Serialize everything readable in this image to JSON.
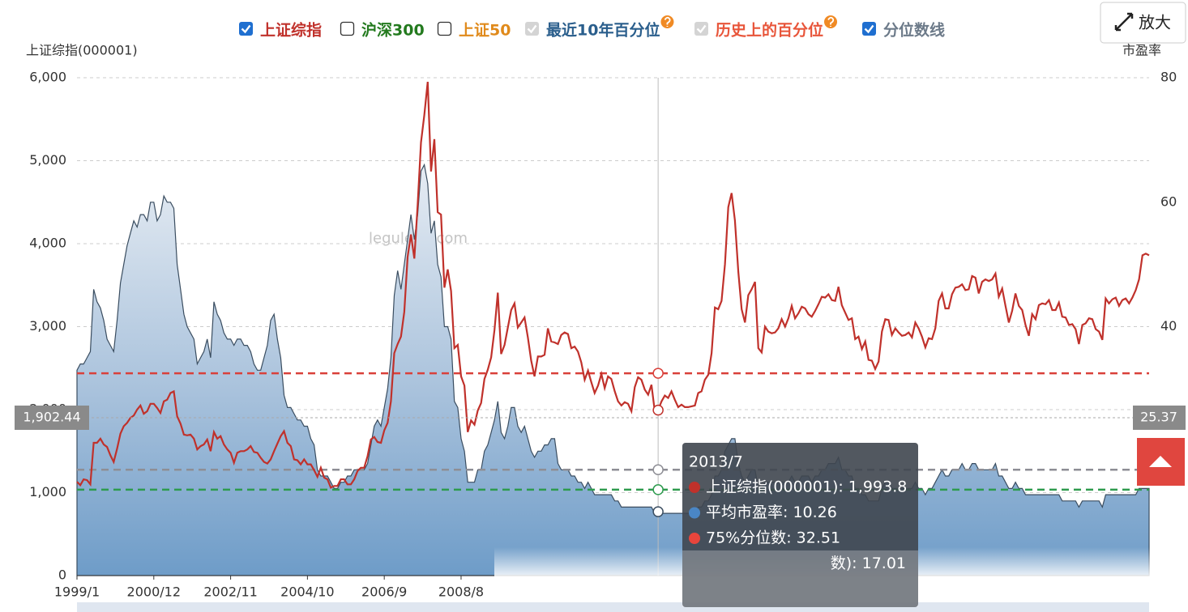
{
  "chart_data": {
    "type": "line-area",
    "legend": [
      {
        "name": "上证综指",
        "checked": true,
        "disabled": false,
        "help": false,
        "color": "#c0312b"
      },
      {
        "name": "沪深300",
        "checked": false,
        "disabled": false,
        "help": false,
        "color": "#237a1e"
      },
      {
        "name": "上证50",
        "checked": false,
        "disabled": false,
        "help": false,
        "color": "#e08a1b"
      },
      {
        "name": "最近10年百分位",
        "checked": true,
        "disabled": true,
        "help": true,
        "color": "#2a5e8c"
      },
      {
        "name": "历史上的百分位",
        "checked": true,
        "disabled": true,
        "help": true,
        "color": "#e8553a"
      },
      {
        "name": "分位数线",
        "checked": true,
        "disabled": false,
        "help": false,
        "color": "#6c7a89"
      }
    ],
    "button": "放大",
    "watermark": "legulegu.com",
    "ylabel": "上证综指(000001)",
    "y2label": "市盈率",
    "ylim": [
      0,
      6000
    ],
    "yticks": [
      0,
      {
        "value": 1000,
        "label": "1,000"
      },
      {
        "value": 2000,
        "label": "2,000"
      },
      {
        "value": 3000,
        "label": "3,000"
      },
      {
        "value": 4000,
        "label": "4,000"
      },
      {
        "value": 5000,
        "label": "5,000"
      },
      {
        "value": 6000,
        "label": "6,000"
      }
    ],
    "y2lim": [
      0,
      80
    ],
    "y2ticks": [
      40,
      60,
      80
    ],
    "grid": true,
    "categories": [
      "1999/1",
      null,
      null,
      null,
      null,
      null,
      null,
      null,
      null,
      null,
      null,
      null,
      null,
      null,
      null,
      null,
      null,
      null,
      null,
      null,
      null,
      null,
      null,
      "2000/12",
      null,
      null,
      null,
      null,
      null,
      null,
      null,
      null,
      null,
      null,
      null,
      null,
      null,
      null,
      null,
      null,
      null,
      null,
      null,
      null,
      null,
      null,
      "2002/11",
      null,
      null,
      null,
      null,
      null,
      null,
      null,
      null,
      null,
      null,
      null,
      null,
      null,
      null,
      null,
      null,
      null,
      null,
      null,
      null,
      null,
      null,
      "2004/10",
      null,
      null,
      null,
      null,
      null,
      null,
      null,
      null,
      null,
      null,
      null,
      null,
      null,
      null,
      null,
      null,
      null,
      null,
      null,
      null,
      null,
      null,
      "2006/9",
      null,
      null,
      null,
      null,
      null,
      null,
      null,
      null,
      null,
      null,
      null,
      null,
      null,
      null,
      null,
      null,
      null,
      null,
      null,
      null,
      null,
      null,
      "2008/8",
      null,
      null,
      null,
      null,
      null,
      null,
      null,
      null,
      null,
      null,
      null,
      null,
      null,
      null,
      null,
      null,
      null,
      null,
      null,
      null,
      null,
      null,
      null,
      null,
      null,
      null,
      null,
      null,
      null,
      null,
      null,
      null,
      null,
      null,
      null,
      null,
      null,
      null,
      null,
      null,
      null,
      null,
      null,
      null,
      null,
      null,
      null,
      null,
      null,
      null,
      null,
      null,
      null,
      null,
      null,
      null,
      null,
      null,
      null,
      null,
      null,
      null,
      null,
      null,
      null,
      null,
      null,
      null,
      null,
      null,
      null,
      null,
      null,
      null,
      null,
      null,
      null,
      null,
      null,
      null,
      null,
      null,
      null,
      null,
      null,
      null,
      null,
      null,
      null,
      null,
      null,
      null,
      null,
      null,
      null,
      null,
      null,
      null,
      null,
      null,
      null,
      null,
      null,
      null,
      null,
      null,
      null,
      null,
      null,
      null,
      null,
      null,
      null,
      null,
      null,
      null,
      null,
      null,
      null,
      null,
      null,
      null,
      null,
      null,
      null,
      null,
      null,
      null,
      null,
      null,
      null,
      null,
      null,
      null,
      null,
      null,
      null,
      null,
      null,
      null,
      null,
      null,
      null,
      null,
      null,
      null,
      null,
      null,
      null,
      null,
      null,
      null,
      null,
      null,
      null,
      null,
      null,
      null,
      null,
      null,
      null,
      null,
      null,
      null,
      null,
      null,
      null,
      null,
      null,
      null,
      null,
      null,
      null,
      null,
      null,
      null,
      null,
      null,
      null,
      null,
      null,
      null,
      null,
      null,
      null,
      null,
      null,
      null,
      null,
      null,
      null,
      null,
      null,
      null,
      null,
      null,
      null,
      null,
      null,
      null,
      null,
      null,
      null,
      null,
      null,
      null
    ],
    "series": [
      {
        "name": "上证综指(000001)",
        "color": "#c0312b",
        "axis": "y",
        "values": [
          1130,
          1090,
          1160,
          1150,
          1100,
          1600,
          1600,
          1650,
          1580,
          1550,
          1450,
          1370,
          1530,
          1710,
          1800,
          1840,
          1900,
          1930,
          2000,
          2050,
          1950,
          1980,
          2070,
          2070,
          2020,
          1960,
          2100,
          2120,
          2200,
          2220,
          1920,
          1830,
          1700,
          1690,
          1700,
          1650,
          1520,
          1560,
          1580,
          1640,
          1500,
          1730,
          1650,
          1680,
          1580,
          1520,
          1480,
          1360,
          1480,
          1500,
          1500,
          1520,
          1560,
          1490,
          1480,
          1420,
          1370,
          1350,
          1400,
          1500,
          1590,
          1680,
          1740,
          1600,
          1560,
          1400,
          1390,
          1340,
          1400,
          1340,
          1340,
          1270,
          1190,
          1300,
          1180,
          1160,
          1060,
          1080,
          1080,
          1160,
          1160,
          1100,
          1100,
          1160,
          1260,
          1300,
          1300,
          1440,
          1640,
          1670,
          1610,
          1600,
          1750,
          1840,
          2100,
          2680,
          2790,
          2880,
          3180,
          3840,
          4110,
          3820,
          4470,
          5220,
          5550,
          5950,
          4870,
          5260,
          4380,
          4350,
          3470,
          3690,
          3430,
          2740,
          2780,
          2400,
          2290,
          1730,
          1870,
          1820,
          1990,
          2080,
          2370,
          2480,
          2630,
          2960,
          3410,
          2670,
          2780,
          2990,
          3200,
          3280,
          2990,
          3050,
          3110,
          2870,
          2590,
          2400,
          2640,
          2640,
          2660,
          2980,
          2820,
          2810,
          2790,
          2900,
          2930,
          2910,
          2740,
          2760,
          2700,
          2570,
          2360,
          2470,
          2330,
          2200,
          2290,
          2430,
          2260,
          2400,
          2370,
          2220,
          2100,
          2050,
          2090,
          2070,
          1980,
          2270,
          2390,
          2360,
          2240,
          2180,
          2300,
          1980,
          1993.8,
          2100,
          2170,
          2140,
          2220,
          2120,
          2030,
          2060,
          2030,
          2030,
          2040,
          2050,
          2200,
          2220,
          2360,
          2420,
          2680,
          3230,
          3210,
          3310,
          3750,
          4440,
          4610,
          4280,
          3660,
          3210,
          3050,
          3380,
          3450,
          3540,
          2740,
          2690,
          3000,
          2940,
          2920,
          2930,
          2980,
          3090,
          3000,
          3100,
          3250,
          3100,
          3160,
          3240,
          3220,
          3150,
          3120,
          3190,
          3270,
          3360,
          3350,
          3390,
          3320,
          3310,
          3480,
          3260,
          3170,
          3080,
          3100,
          2850,
          2880,
          2730,
          2820,
          2600,
          2590,
          2490,
          2580,
          2940,
          3090,
          3080,
          2900,
          2980,
          2930,
          2890,
          2900,
          2930,
          2870,
          3050,
          2980,
          2880,
          2750,
          2860,
          2850,
          2980,
          3310,
          3400,
          3220,
          3220,
          3390,
          3470,
          3480,
          3510,
          3440,
          3450,
          3610,
          3590,
          3400,
          3540,
          3570,
          3550,
          3570,
          3640,
          3360,
          3460,
          3250,
          3050,
          3190,
          3400,
          3250,
          3200,
          3020,
          2890,
          3150,
          3090,
          3260,
          3280,
          3270,
          3320,
          3200,
          3200,
          3290,
          3120,
          3110,
          3020,
          3030,
          2970,
          2790,
          3020,
          3040,
          3100,
          3090,
          2970,
          2940,
          2840,
          3340,
          3280,
          3330,
          3350,
          3250,
          3320,
          3340,
          3280,
          3350,
          3440,
          3570,
          3860,
          3880,
          3860
        ]
      },
      {
        "name": "平均市盈率",
        "color": "#4a86c5",
        "axis": "y2",
        "values": [
          33,
          34,
          34,
          35,
          36,
          46,
          44,
          43,
          41,
          38,
          37,
          36,
          41,
          47,
          50,
          53,
          55,
          57,
          56,
          58,
          58,
          57,
          60,
          60,
          57,
          58,
          61,
          60,
          60,
          59,
          50,
          46,
          42,
          40,
          39,
          38,
          34,
          35,
          36,
          38,
          35,
          44,
          42,
          41,
          39,
          38,
          38,
          37,
          38,
          38,
          37,
          37,
          36,
          34,
          33,
          33,
          35,
          37,
          41,
          42,
          38,
          35,
          29,
          27,
          27,
          26,
          25,
          25,
          24,
          24,
          22,
          21,
          17,
          16,
          16,
          16,
          15,
          14,
          14,
          15,
          15,
          16,
          16,
          17,
          17,
          17,
          17,
          18,
          21,
          24,
          25,
          24,
          27,
          30,
          35,
          45,
          49,
          46,
          50,
          54,
          58,
          54,
          58,
          65,
          66,
          63,
          55,
          57,
          50,
          48,
          40,
          40,
          38,
          28,
          27,
          22,
          20,
          15,
          15,
          15,
          17,
          17,
          20,
          21,
          23,
          25,
          28,
          23,
          22,
          24,
          27,
          27,
          24,
          23,
          24,
          22,
          20,
          19,
          20,
          20,
          21,
          21,
          22,
          22,
          18,
          17,
          17,
          17,
          16,
          16,
          15,
          15,
          14,
          15,
          14,
          13,
          13,
          13,
          13,
          13,
          13,
          12,
          12,
          11,
          11,
          11,
          11,
          11,
          11,
          11,
          11,
          11,
          11,
          10,
          10.26,
          10,
          10,
          10,
          10,
          10,
          10,
          10,
          10,
          10,
          10,
          10,
          11,
          11,
          12,
          12,
          13,
          16,
          16,
          17,
          20,
          21,
          22,
          22,
          18,
          16,
          15,
          16,
          17,
          17,
          14,
          14,
          15,
          15,
          15,
          15,
          15,
          15,
          15,
          15,
          16,
          15,
          15,
          16,
          16,
          16,
          15,
          16,
          16,
          17,
          17,
          18,
          18,
          18,
          19,
          17,
          17,
          16,
          16,
          14,
          14,
          13,
          13,
          12,
          12,
          12,
          12,
          14,
          15,
          15,
          14,
          14,
          14,
          14,
          14,
          14,
          14,
          15,
          14,
          14,
          13,
          14,
          14,
          15,
          16,
          17,
          16,
          16,
          17,
          17,
          17,
          18,
          17,
          17,
          18,
          18,
          17,
          17,
          17,
          17,
          17,
          18,
          16,
          16,
          15,
          14,
          14,
          15,
          14,
          14,
          13,
          13,
          13,
          13,
          13,
          13,
          13,
          13,
          13,
          13,
          13,
          12,
          12,
          12,
          12,
          12,
          11,
          12,
          12,
          12,
          12,
          12,
          12,
          11,
          13,
          13,
          13,
          13,
          13,
          13,
          13,
          13,
          13,
          13,
          14,
          14,
          14,
          14
        ]
      }
    ],
    "ref_lines": [
      {
        "value": 32.51,
        "color": "#d9403a"
      },
      {
        "value": 17.01,
        "color": "#8e8e95"
      },
      {
        "value": 13.8,
        "color": "#2e9b4e"
      }
    ],
    "pointer": {
      "y": {
        "value": 1902.44,
        "label": "1,902.44"
      },
      "y2": 25.37
    },
    "tooltip": {
      "title": "2013/7",
      "rows": [
        {
          "text": "上证综指(000001): 1,993.8",
          "color": "#c0312b"
        },
        {
          "text": "平均市盈率: 10.26",
          "color": "#4a86c5"
        },
        {
          "text": "75%分位数: 32.51",
          "color": "#e8453c"
        },
        {
          "text": "数): 17.01",
          "color": null
        }
      ]
    }
  }
}
